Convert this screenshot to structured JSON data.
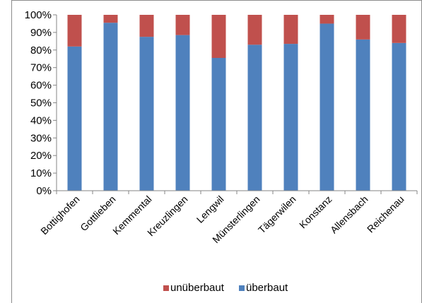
{
  "chart_data": {
    "type": "bar",
    "stacked": true,
    "percent_stacked": true,
    "categories": [
      "Bottighofen",
      "Gottlieben",
      "Kemmental",
      "Kreuzlingen",
      "Lengwil",
      "Münsterlingen",
      "Tägerwilen",
      "Konstanz",
      "Allensbach",
      "Reichenau"
    ],
    "series": [
      {
        "name": "überbaut",
        "color": "#4f81bd",
        "values": [
          82,
          95.5,
          87.5,
          88.5,
          75.5,
          83,
          83.5,
          95,
          86,
          84
        ]
      },
      {
        "name": "unüberbaut",
        "color": "#c0504d",
        "values": [
          18,
          4.5,
          12.5,
          11.5,
          24.5,
          17,
          16.5,
          5,
          14,
          16
        ]
      }
    ],
    "ylim": [
      0,
      100
    ],
    "yticks": [
      "0%",
      "10%",
      "20%",
      "30%",
      "40%",
      "50%",
      "60%",
      "70%",
      "80%",
      "90%",
      "100%"
    ],
    "grid": false,
    "legend": {
      "position": "bottom",
      "order": [
        "unüberbaut",
        "überbaut"
      ]
    },
    "title": "",
    "xlabel": "",
    "ylabel": ""
  }
}
